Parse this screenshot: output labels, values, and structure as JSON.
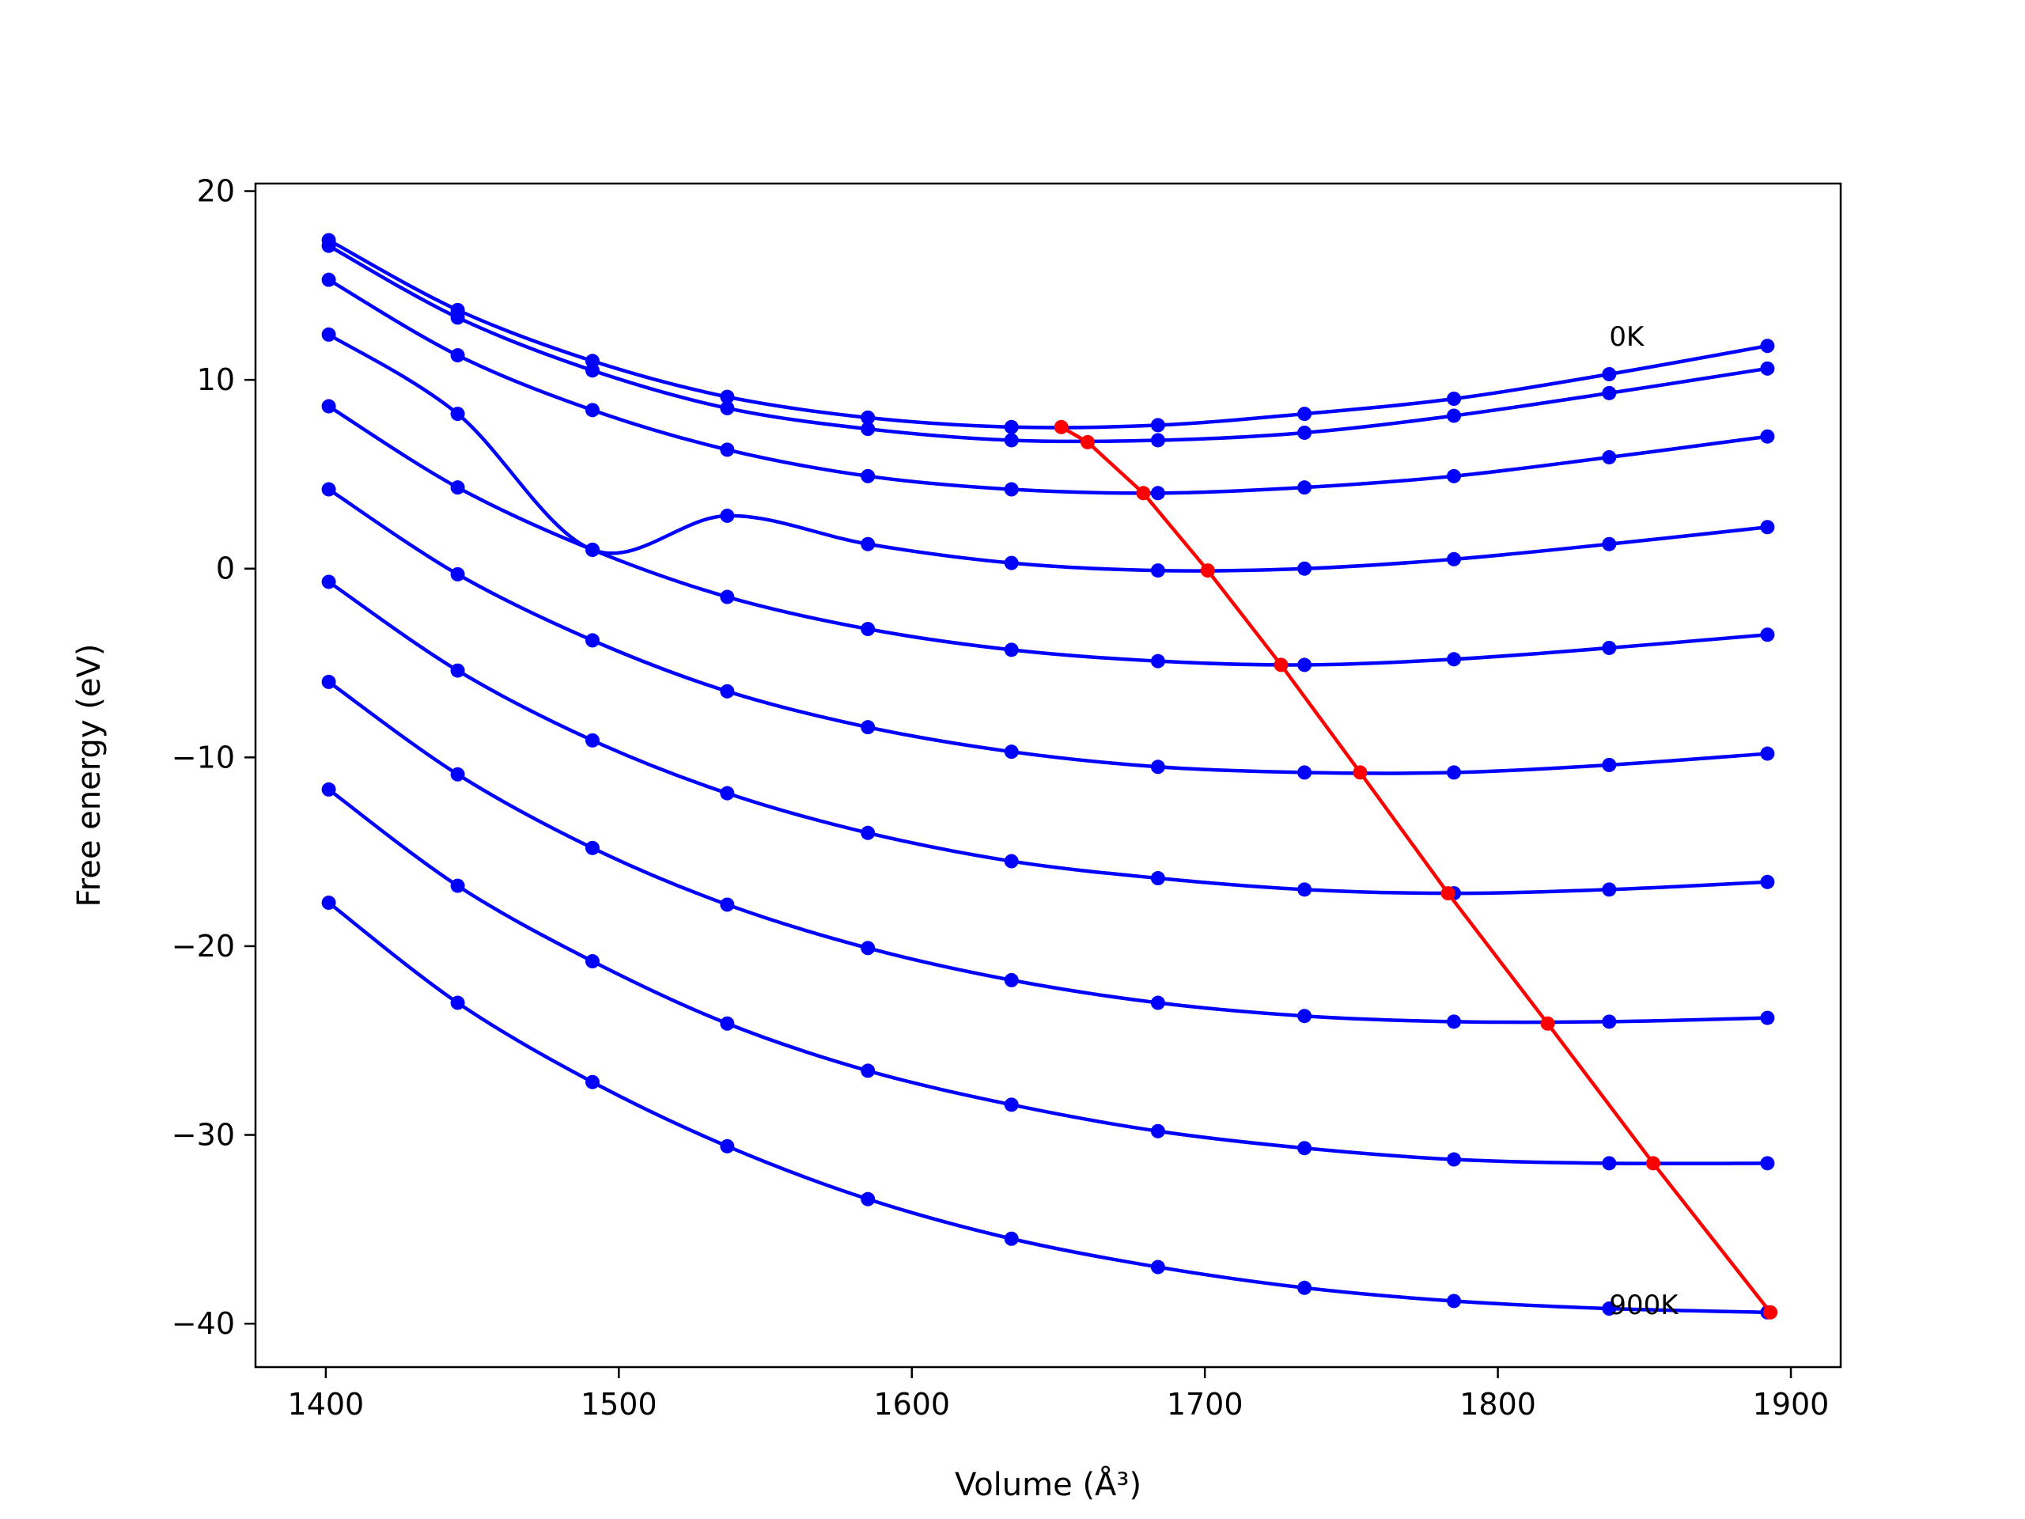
{
  "chart_data": {
    "type": "line",
    "title": "",
    "xlabel": "Volume (Å³)",
    "ylabel": "Free energy (eV)",
    "xlim": [
      1376,
      1917
    ],
    "ylim": [
      -42.3,
      20.4
    ],
    "xticks": [
      1400,
      1500,
      1600,
      1700,
      1800,
      1900
    ],
    "yticks": [
      20,
      10,
      0,
      -10,
      -20,
      -30,
      -40
    ],
    "xtick_labels": [
      "1400",
      "1500",
      "1600",
      "1700",
      "1800",
      "1900"
    ],
    "ytick_labels": [
      "20",
      "10",
      "0",
      "−10",
      "−20",
      "−30",
      "−40"
    ],
    "grid": false,
    "series_color": "#0000ff",
    "min_line_color": "#ff0000",
    "x": [
      1401,
      1445,
      1491,
      1537,
      1585,
      1634,
      1684,
      1734,
      1785,
      1838,
      1892
    ],
    "series": [
      {
        "values": [
          17.4,
          13.7,
          11.0,
          9.1,
          8.0,
          7.5,
          7.6,
          8.2,
          9.0,
          10.3,
          11.8
        ]
      },
      {
        "values": [
          17.1,
          13.3,
          10.5,
          8.5,
          7.4,
          6.8,
          6.8,
          7.2,
          8.1,
          9.3,
          10.6
        ]
      },
      {
        "values": [
          15.3,
          11.3,
          8.4,
          6.3,
          4.9,
          4.2,
          4.0,
          4.3,
          4.9,
          5.9,
          7.0
        ]
      },
      {
        "values": [
          12.4,
          8.2,
          1.0,
          2.8,
          1.3,
          0.3,
          -0.1,
          0.0,
          0.5,
          1.3,
          2.2
        ]
      },
      {
        "values": [
          8.6,
          4.3,
          1.0,
          -1.5,
          -3.2,
          -4.3,
          -4.9,
          -5.1,
          -4.8,
          -4.2,
          -3.5
        ]
      },
      {
        "values": [
          4.2,
          -0.3,
          -3.8,
          -6.5,
          -8.4,
          -9.7,
          -10.5,
          -10.8,
          -10.8,
          -10.4,
          -9.8
        ]
      },
      {
        "values": [
          -0.7,
          -5.4,
          -9.1,
          -11.9,
          -14.0,
          -15.5,
          -16.4,
          -17.0,
          -17.2,
          -17.0,
          -16.6
        ]
      },
      {
        "values": [
          -6.0,
          -10.9,
          -14.8,
          -17.8,
          -20.1,
          -21.8,
          -23.0,
          -23.7,
          -24.0,
          -24.0,
          -23.8
        ]
      },
      {
        "values": [
          -11.7,
          -16.8,
          -20.8,
          -24.1,
          -26.6,
          -28.4,
          -29.8,
          -30.7,
          -31.3,
          -31.5,
          -31.5
        ]
      },
      {
        "values": [
          -17.7,
          -23.0,
          -27.2,
          -30.6,
          -33.4,
          -35.5,
          -37.0,
          -38.1,
          -38.8,
          -39.2,
          -39.4
        ]
      }
    ],
    "minima": {
      "x": [
        1651,
        1660,
        1679,
        1701,
        1726,
        1753,
        1783,
        1817,
        1853,
        1893
      ],
      "y": [
        7.5,
        6.7,
        4.0,
        -0.1,
        -5.1,
        -10.8,
        -17.2,
        -24.1,
        -31.5,
        -39.4
      ]
    },
    "annotations": [
      {
        "text": "0K",
        "x": 1838,
        "y": 11.8
      },
      {
        "text": "900K",
        "x": 1838,
        "y": -39.5
      }
    ]
  }
}
